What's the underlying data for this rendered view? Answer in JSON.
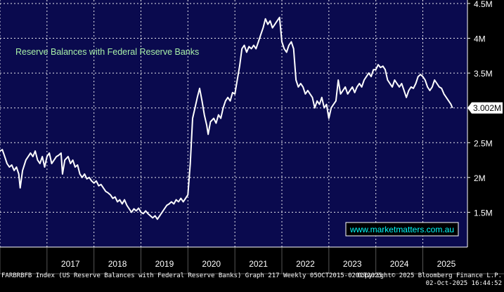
{
  "chart_data": {
    "type": "line",
    "title": "Reserve Balances with Federal Reserve Banks",
    "watermark": "www.marketmatters.com.au",
    "last_value_label": "3.002M",
    "x_tick_labels": [
      "2017",
      "2018",
      "2019",
      "2020",
      "2021",
      "2022",
      "2023",
      "2024",
      "2025"
    ],
    "y_ticks": [
      1.5,
      2.0,
      2.5,
      3.0,
      3.5,
      4.0,
      4.5
    ],
    "y_tick_labels": [
      "1.5M",
      "2M",
      "2.5M",
      "3M",
      "3.5M",
      "4M",
      "4.5M"
    ],
    "xlim": [
      2016.0,
      2025.95
    ],
    "ylim": [
      1.0,
      4.55
    ],
    "grid": true,
    "colors": {
      "background": "#000000",
      "plot_bg": "#0a0a4e",
      "line": "#ffffff",
      "title": "#a8f0a8",
      "watermark": "#00ffff"
    },
    "series": [
      {
        "points": [
          [
            2016.0,
            2.38
          ],
          [
            2016.05,
            2.4
          ],
          [
            2016.1,
            2.3
          ],
          [
            2016.15,
            2.2
          ],
          [
            2016.2,
            2.15
          ],
          [
            2016.25,
            2.18
          ],
          [
            2016.3,
            2.1
          ],
          [
            2016.35,
            2.15
          ],
          [
            2016.4,
            2.05
          ],
          [
            2016.43,
            1.85
          ],
          [
            2016.48,
            2.1
          ],
          [
            2016.55,
            2.25
          ],
          [
            2016.6,
            2.3
          ],
          [
            2016.65,
            2.35
          ],
          [
            2016.7,
            2.3
          ],
          [
            2016.75,
            2.38
          ],
          [
            2016.8,
            2.25
          ],
          [
            2016.85,
            2.2
          ],
          [
            2016.9,
            2.3
          ],
          [
            2016.95,
            2.15
          ],
          [
            2017.0,
            2.3
          ],
          [
            2017.05,
            2.35
          ],
          [
            2017.1,
            2.2
          ],
          [
            2017.15,
            2.25
          ],
          [
            2017.2,
            2.3
          ],
          [
            2017.25,
            2.32
          ],
          [
            2017.3,
            2.35
          ],
          [
            2017.33,
            2.05
          ],
          [
            2017.38,
            2.25
          ],
          [
            2017.45,
            2.3
          ],
          [
            2017.5,
            2.2
          ],
          [
            2017.55,
            2.25
          ],
          [
            2017.6,
            2.15
          ],
          [
            2017.65,
            2.18
          ],
          [
            2017.7,
            2.05
          ],
          [
            2017.75,
            2.0
          ],
          [
            2017.8,
            2.05
          ],
          [
            2017.85,
            1.98
          ],
          [
            2017.9,
            2.0
          ],
          [
            2017.95,
            1.95
          ],
          [
            2018.0,
            1.92
          ],
          [
            2018.05,
            1.95
          ],
          [
            2018.1,
            1.88
          ],
          [
            2018.15,
            1.9
          ],
          [
            2018.2,
            1.85
          ],
          [
            2018.25,
            1.8
          ],
          [
            2018.3,
            1.78
          ],
          [
            2018.35,
            1.75
          ],
          [
            2018.4,
            1.7
          ],
          [
            2018.45,
            1.72
          ],
          [
            2018.5,
            1.65
          ],
          [
            2018.55,
            1.68
          ],
          [
            2018.6,
            1.62
          ],
          [
            2018.65,
            1.68
          ],
          [
            2018.7,
            1.6
          ],
          [
            2018.75,
            1.55
          ],
          [
            2018.8,
            1.5
          ],
          [
            2018.85,
            1.55
          ],
          [
            2018.9,
            1.52
          ],
          [
            2018.95,
            1.56
          ],
          [
            2019.0,
            1.5
          ],
          [
            2019.05,
            1.48
          ],
          [
            2019.1,
            1.52
          ],
          [
            2019.15,
            1.48
          ],
          [
            2019.2,
            1.45
          ],
          [
            2019.25,
            1.42
          ],
          [
            2019.3,
            1.45
          ],
          [
            2019.35,
            1.4
          ],
          [
            2019.4,
            1.45
          ],
          [
            2019.45,
            1.5
          ],
          [
            2019.5,
            1.55
          ],
          [
            2019.55,
            1.6
          ],
          [
            2019.6,
            1.62
          ],
          [
            2019.65,
            1.65
          ],
          [
            2019.7,
            1.62
          ],
          [
            2019.75,
            1.68
          ],
          [
            2019.8,
            1.65
          ],
          [
            2019.85,
            1.7
          ],
          [
            2019.9,
            1.65
          ],
          [
            2019.95,
            1.7
          ],
          [
            2020.0,
            1.75
          ],
          [
            2020.05,
            2.2
          ],
          [
            2020.1,
            2.85
          ],
          [
            2020.15,
            3.0
          ],
          [
            2020.2,
            3.15
          ],
          [
            2020.25,
            3.28
          ],
          [
            2020.3,
            3.1
          ],
          [
            2020.35,
            2.9
          ],
          [
            2020.4,
            2.75
          ],
          [
            2020.43,
            2.62
          ],
          [
            2020.48,
            2.8
          ],
          [
            2020.55,
            2.85
          ],
          [
            2020.6,
            2.78
          ],
          [
            2020.65,
            2.9
          ],
          [
            2020.7,
            2.85
          ],
          [
            2020.75,
            3.0
          ],
          [
            2020.8,
            3.1
          ],
          [
            2020.85,
            3.15
          ],
          [
            2020.9,
            3.1
          ],
          [
            2020.95,
            3.22
          ],
          [
            2021.0,
            3.2
          ],
          [
            2021.05,
            3.4
          ],
          [
            2021.1,
            3.6
          ],
          [
            2021.15,
            3.85
          ],
          [
            2021.2,
            3.9
          ],
          [
            2021.25,
            3.8
          ],
          [
            2021.3,
            3.88
          ],
          [
            2021.35,
            3.85
          ],
          [
            2021.4,
            3.9
          ],
          [
            2021.45,
            3.85
          ],
          [
            2021.5,
            3.95
          ],
          [
            2021.55,
            4.05
          ],
          [
            2021.6,
            4.15
          ],
          [
            2021.65,
            4.28
          ],
          [
            2021.7,
            4.2
          ],
          [
            2021.75,
            4.25
          ],
          [
            2021.8,
            4.15
          ],
          [
            2021.85,
            4.2
          ],
          [
            2021.9,
            4.25
          ],
          [
            2021.95,
            4.3
          ],
          [
            2022.0,
            3.95
          ],
          [
            2022.05,
            3.85
          ],
          [
            2022.1,
            3.8
          ],
          [
            2022.15,
            3.9
          ],
          [
            2022.2,
            3.95
          ],
          [
            2022.25,
            3.85
          ],
          [
            2022.3,
            3.4
          ],
          [
            2022.35,
            3.3
          ],
          [
            2022.4,
            3.35
          ],
          [
            2022.45,
            3.3
          ],
          [
            2022.5,
            3.2
          ],
          [
            2022.55,
            3.25
          ],
          [
            2022.6,
            3.2
          ],
          [
            2022.65,
            3.15
          ],
          [
            2022.7,
            3.0
          ],
          [
            2022.75,
            3.1
          ],
          [
            2022.8,
            3.05
          ],
          [
            2022.85,
            3.15
          ],
          [
            2022.9,
            3.0
          ],
          [
            2022.95,
            3.05
          ],
          [
            2023.0,
            2.85
          ],
          [
            2023.05,
            3.0
          ],
          [
            2023.1,
            3.05
          ],
          [
            2023.15,
            3.1
          ],
          [
            2023.2,
            3.4
          ],
          [
            2023.25,
            3.2
          ],
          [
            2023.3,
            3.25
          ],
          [
            2023.35,
            3.3
          ],
          [
            2023.4,
            3.2
          ],
          [
            2023.45,
            3.25
          ],
          [
            2023.5,
            3.3
          ],
          [
            2023.55,
            3.22
          ],
          [
            2023.6,
            3.3
          ],
          [
            2023.65,
            3.35
          ],
          [
            2023.7,
            3.3
          ],
          [
            2023.75,
            3.4
          ],
          [
            2023.8,
            3.45
          ],
          [
            2023.85,
            3.5
          ],
          [
            2023.9,
            3.45
          ],
          [
            2023.95,
            3.55
          ],
          [
            2024.0,
            3.55
          ],
          [
            2024.05,
            3.62
          ],
          [
            2024.1,
            3.58
          ],
          [
            2024.15,
            3.6
          ],
          [
            2024.2,
            3.55
          ],
          [
            2024.25,
            3.4
          ],
          [
            2024.3,
            3.35
          ],
          [
            2024.35,
            3.3
          ],
          [
            2024.4,
            3.4
          ],
          [
            2024.45,
            3.35
          ],
          [
            2024.5,
            3.3
          ],
          [
            2024.55,
            3.35
          ],
          [
            2024.6,
            3.25
          ],
          [
            2024.65,
            3.15
          ],
          [
            2024.7,
            3.25
          ],
          [
            2024.75,
            3.3
          ],
          [
            2024.8,
            3.28
          ],
          [
            2024.85,
            3.35
          ],
          [
            2024.9,
            3.45
          ],
          [
            2024.95,
            3.48
          ],
          [
            2025.0,
            3.45
          ],
          [
            2025.05,
            3.4
          ],
          [
            2025.1,
            3.3
          ],
          [
            2025.15,
            3.25
          ],
          [
            2025.2,
            3.3
          ],
          [
            2025.25,
            3.4
          ],
          [
            2025.3,
            3.35
          ],
          [
            2025.35,
            3.3
          ],
          [
            2025.4,
            3.28
          ],
          [
            2025.45,
            3.2
          ],
          [
            2025.5,
            3.15
          ],
          [
            2025.55,
            3.1
          ],
          [
            2025.6,
            3.05
          ],
          [
            2025.63,
            3.0
          ]
        ]
      }
    ]
  },
  "footer": {
    "left": "FARBRBFB Index (US Reserve Balances with Federal Reserve Banks) Graph 217 Weekly 05OCT2015-02OCT2025",
    "copyright": "Copyright© 2025 Bloomberg Finance L.P.",
    "timestamp": "02-Oct-2025 16:44:52"
  }
}
